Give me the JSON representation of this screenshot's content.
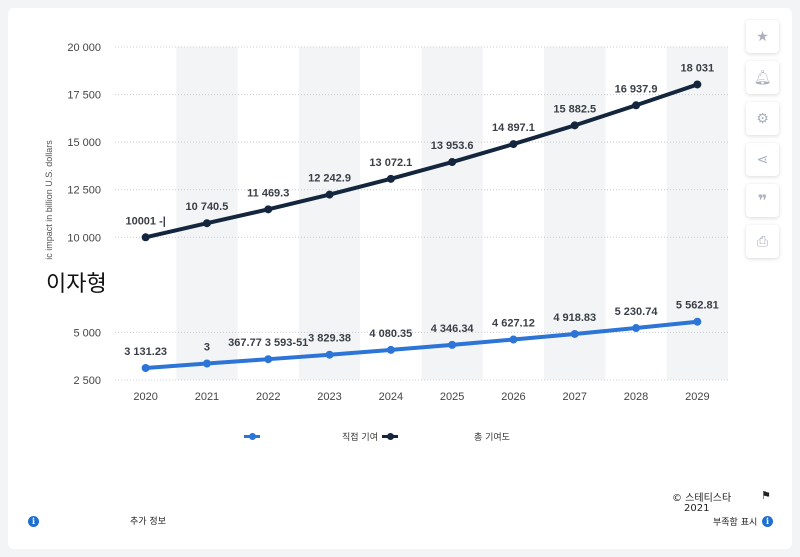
{
  "side_tools": [
    "star-icon",
    "bell-icon",
    "gear-icon",
    "share-icon",
    "quote-icon",
    "print-icon"
  ],
  "overlay_title": "이자형",
  "legend": {
    "direct_label": "직접 기여",
    "total_label": "총 기여도"
  },
  "footer": {
    "more_info": "추가 정보",
    "copyright": "© 스테티스타",
    "year": "2021",
    "show_source": "부족함 표시"
  },
  "colors": {
    "direct": "#2c74d6",
    "total": "#14263d",
    "band": "#f3f4f6"
  },
  "chart_data": {
    "type": "line",
    "ylabel": "ic impact in billion U.S. dollars",
    "ylim": [
      2500,
      20000
    ],
    "y_ticks": [
      {
        "value": 20000,
        "label": "20 000"
      },
      {
        "value": 17500,
        "label": "17 500"
      },
      {
        "value": 15000,
        "label": "15 000"
      },
      {
        "value": 12500,
        "label": "12 500"
      },
      {
        "value": 10000,
        "label": "10 000"
      },
      {
        "value": 5000,
        "label": "5 000"
      },
      {
        "value": 2500,
        "label": "2 500"
      }
    ],
    "grid": true,
    "legend_position": "bottom",
    "categories": [
      "2020",
      "2021",
      "2022",
      "2023",
      "2024",
      "2025",
      "2026",
      "2027",
      "2028",
      "2029"
    ],
    "series": [
      {
        "name": "총 기여도",
        "color": "#14263d",
        "values": [
          10001,
          10740.5,
          11469.3,
          12242.9,
          13072.1,
          13953.6,
          14897.1,
          15882.5,
          16937.9,
          18031
        ],
        "labels": [
          "10001 -|",
          "10 740.5",
          "11 469.3",
          "12 242.9",
          "13 072.1",
          "13 953.6",
          "14 897.1",
          "15 882.5",
          "16 937.9",
          "18 031"
        ]
      },
      {
        "name": "직접 기여",
        "color": "#2c74d6",
        "values": [
          3131.23,
          3367.77,
          3593.51,
          3829.38,
          4080.35,
          4346.34,
          4627.12,
          4918.83,
          5230.74,
          5562.81
        ],
        "labels": [
          "3 131.23",
          "3",
          "367.77 3 593-51",
          "3 829.38",
          "4 080.35",
          "4 346.34",
          "4 627.12",
          "4 918.83",
          "5 230.74",
          "5 562.81"
        ]
      }
    ]
  }
}
